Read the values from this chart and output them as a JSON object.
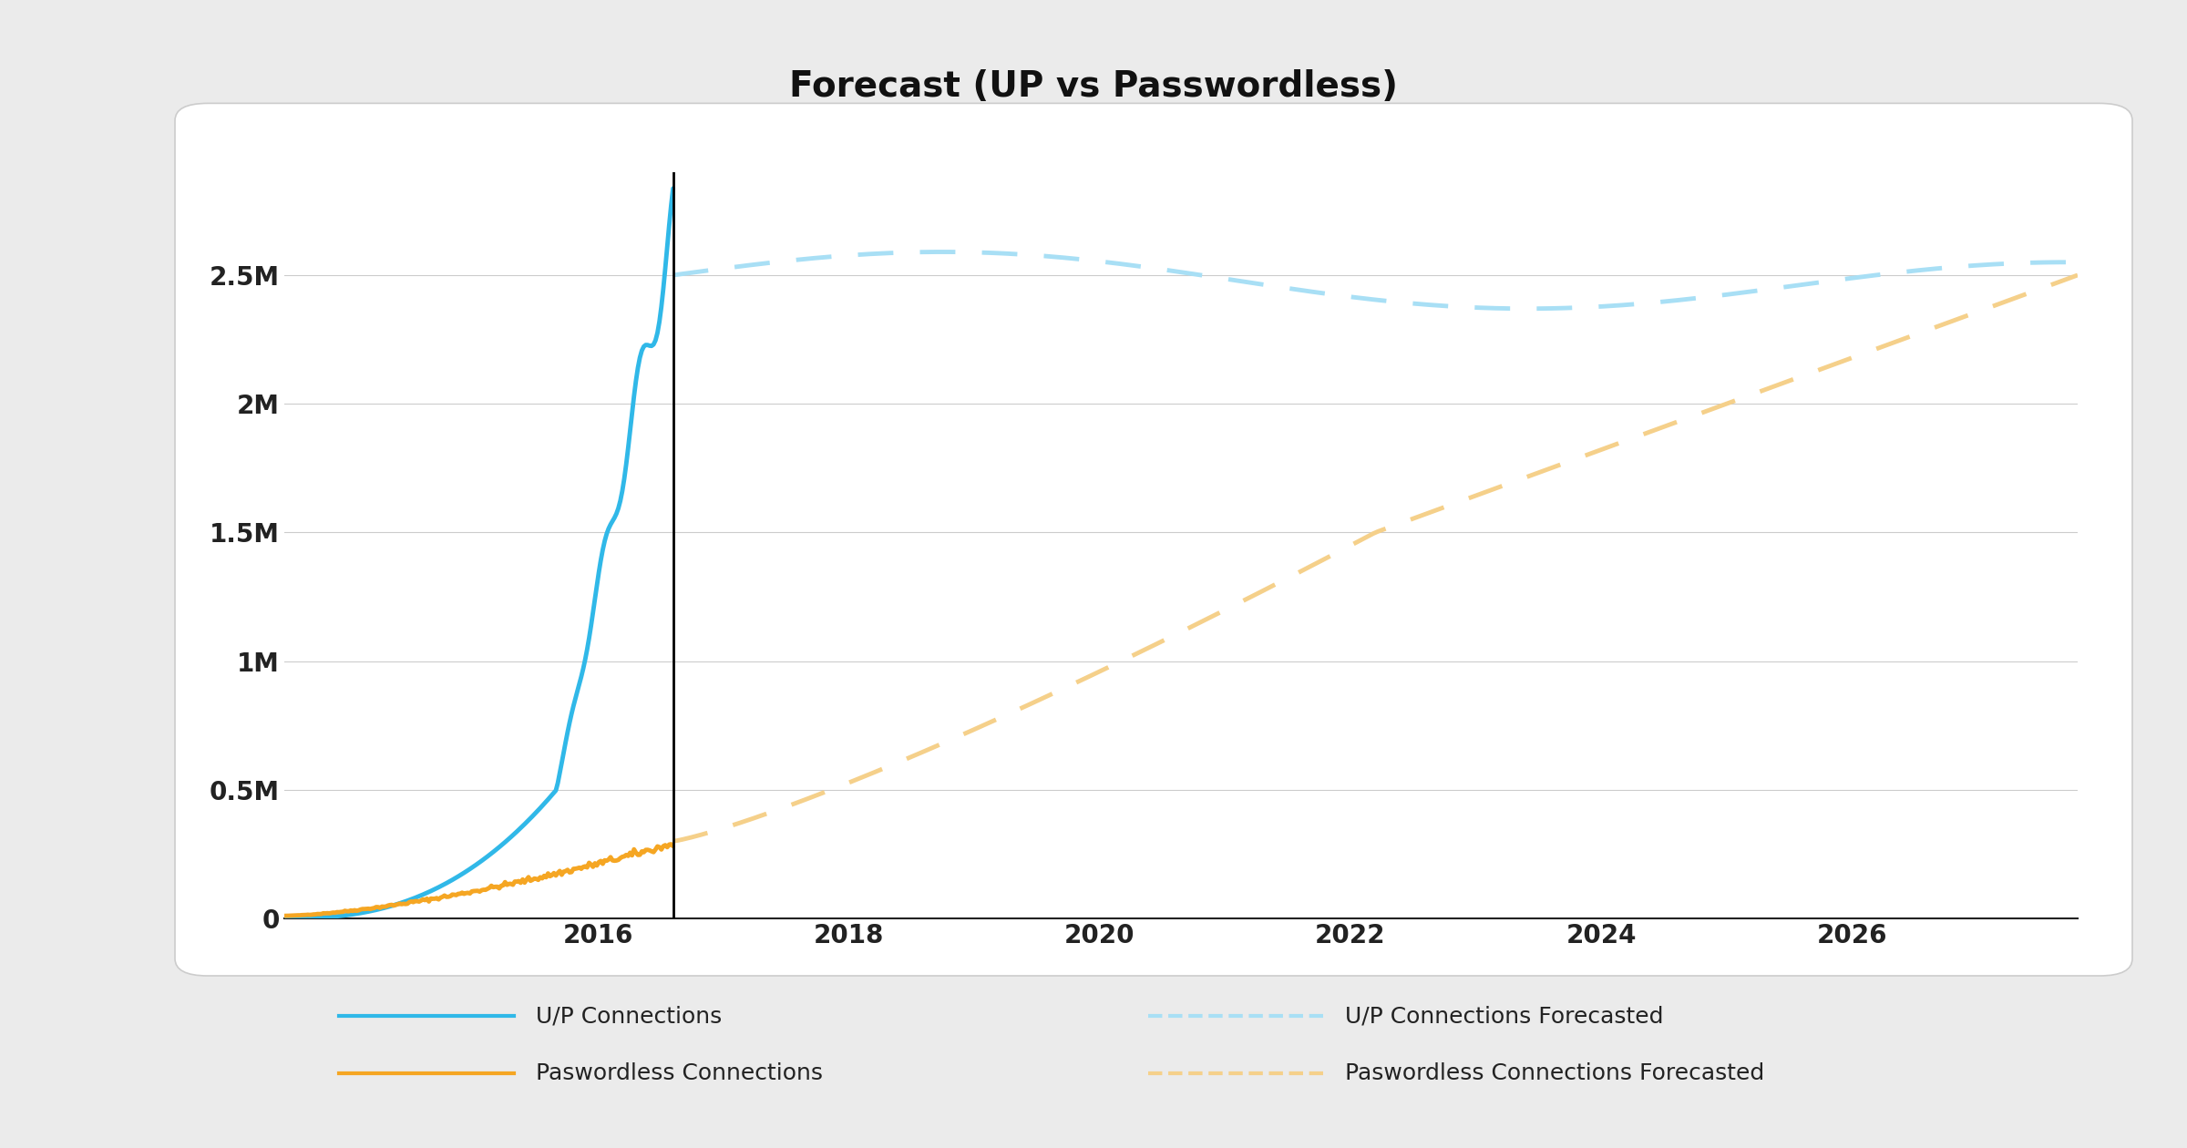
{
  "title": "Forecast (UP vs Passwordless)",
  "background_color": "#ebebeb",
  "chart_bg_color": "#ffffff",
  "title_fontsize": 28,
  "ylabel_ticks": [
    "0",
    "0.5M",
    "1M",
    "1.5M",
    "2M",
    "2.5M"
  ],
  "ytick_vals": [
    0,
    500000,
    1000000,
    1500000,
    2000000,
    2500000
  ],
  "ylim": [
    0,
    2900000
  ],
  "xlim_start": 2013.5,
  "xlim_end": 2027.8,
  "vline_x": 2016.6,
  "up_color": "#30b8e8",
  "passwordless_color": "#f5a623",
  "up_forecast_color": "#a8dff5",
  "passwordless_forecast_color": "#f5d08a",
  "legend_labels": [
    "U/P Connections",
    "U/P Connections Forecasted",
    "Paswordless Connections",
    "Paswordless Connections Forecasted"
  ],
  "xtick_labels": [
    "2016",
    "2018",
    "2020",
    "2022",
    "2024",
    "2026"
  ],
  "xtick_vals": [
    2016,
    2018,
    2020,
    2022,
    2024,
    2026
  ]
}
